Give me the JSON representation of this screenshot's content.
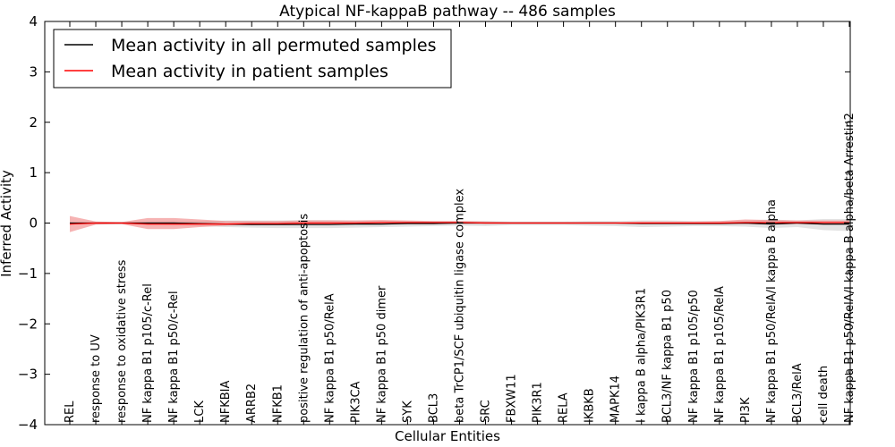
{
  "chart_data": {
    "type": "line",
    "title": "Atypical NF-kappaB pathway -- 486 samples",
    "xlabel": "Cellular Entities",
    "ylabel": "Inferred Activity",
    "ylim": [
      -4,
      4
    ],
    "yticks": [
      -4,
      -3,
      -2,
      -1,
      0,
      1,
      2,
      3,
      4
    ],
    "ytick_labels": [
      "−4",
      "−3",
      "−2",
      "−1",
      "0",
      "1",
      "2",
      "3",
      "4"
    ],
    "grid": false,
    "legend_position": "top-left",
    "categories": [
      "REL",
      "response to UV",
      "response to oxidative stress",
      "NF kappa B1 p105/c-Rel",
      "NF kappa B1 p50/c-Rel",
      "LCK",
      "NFKBIA",
      "ARRB2",
      "NFKB1",
      "positive regulation of anti-apoptosis",
      "NF kappa B1 p50/RelA",
      "PIK3CA",
      "NF kappa B1 p50 dimer",
      "SYK",
      "BCL3",
      "beta TrCP1/SCF ubiquitin ligase complex",
      "SRC",
      "FBXW11",
      "PIK3R1",
      "RELA",
      "IKBKB",
      "MAPK14",
      "I kappa B alpha/PIK3R1",
      "BCL3/NF kappa B1 p50",
      "NF kappa B1 p105/p50",
      "NF kappa B1 p105/RelA",
      "PI3K",
      "NF kappa B1 p50/RelA/I kappa B alpha",
      "BCL3/RelA",
      "cell death",
      "NF kappa B1 p50/RelA/I kappa B alpha/beta Arrestin2"
    ],
    "series": [
      {
        "name": "Mean activity in all permuted samples",
        "color": "#000000",
        "band_color": "#c8c8c8",
        "values": [
          0,
          0,
          0,
          0,
          0,
          -0.01,
          -0.02,
          -0.03,
          -0.03,
          -0.03,
          -0.03,
          -0.02,
          -0.02,
          -0.01,
          -0.01,
          0,
          0,
          0,
          0,
          0,
          0,
          0,
          -0.01,
          -0.01,
          -0.01,
          -0.01,
          0,
          -0.02,
          0,
          -0.02,
          -0.02
        ],
        "band_lower": [
          -0.02,
          -0.02,
          -0.02,
          -0.03,
          -0.04,
          -0.06,
          -0.08,
          -0.09,
          -0.1,
          -0.1,
          -0.1,
          -0.09,
          -0.08,
          -0.07,
          -0.06,
          -0.05,
          -0.06,
          -0.04,
          -0.04,
          -0.04,
          -0.05,
          -0.06,
          -0.08,
          -0.07,
          -0.06,
          -0.06,
          -0.07,
          -0.1,
          -0.08,
          -0.14,
          -0.16
        ],
        "band_upper": [
          0.02,
          0.02,
          0.02,
          0.03,
          0.04,
          0.04,
          0.05,
          0.05,
          0.05,
          0.06,
          0.06,
          0.05,
          0.05,
          0.04,
          0.04,
          0.04,
          0.04,
          0.03,
          0.03,
          0.03,
          0.04,
          0.04,
          0.05,
          0.05,
          0.04,
          0.04,
          0.05,
          0.07,
          0.05,
          0.08,
          0.08
        ]
      },
      {
        "name": "Mean activity in patient samples",
        "color": "#ff0000",
        "band_color": "#f08080",
        "values": [
          -0.02,
          0,
          0,
          -0.02,
          -0.02,
          -0.02,
          -0.02,
          -0.01,
          -0.01,
          0,
          0,
          0,
          0.01,
          0.01,
          0.01,
          0.01,
          0,
          0,
          0,
          0,
          0,
          0,
          0,
          0,
          0,
          0,
          0.01,
          0.01,
          0.01,
          0.01,
          0.01
        ],
        "band_lower": [
          -0.18,
          -0.03,
          -0.02,
          -0.12,
          -0.12,
          -0.08,
          -0.05,
          -0.04,
          -0.03,
          -0.03,
          -0.03,
          -0.02,
          -0.02,
          -0.02,
          -0.02,
          -0.01,
          -0.01,
          -0.01,
          -0.01,
          -0.01,
          -0.01,
          -0.01,
          -0.01,
          -0.01,
          -0.02,
          -0.02,
          -0.02,
          -0.03,
          -0.02,
          -0.03,
          -0.03
        ],
        "band_upper": [
          0.14,
          0.03,
          0.02,
          0.1,
          0.1,
          0.07,
          0.04,
          0.04,
          0.04,
          0.05,
          0.05,
          0.05,
          0.06,
          0.05,
          0.04,
          0.04,
          0.03,
          0.02,
          0.02,
          0.02,
          0.02,
          0.02,
          0.03,
          0.03,
          0.03,
          0.04,
          0.07,
          0.06,
          0.05,
          0.05,
          0.05
        ]
      }
    ]
  }
}
